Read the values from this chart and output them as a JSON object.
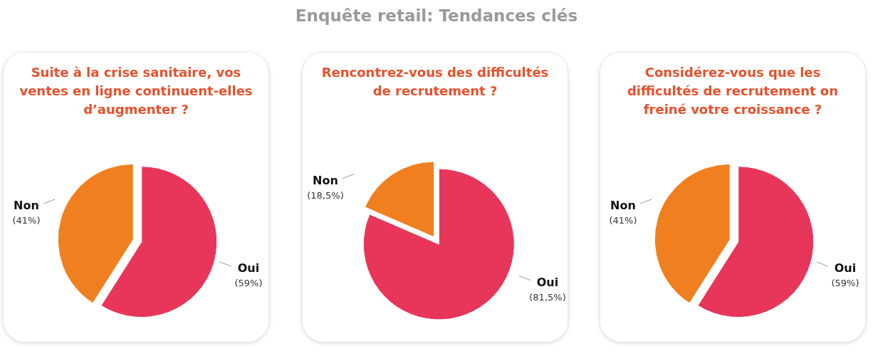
{
  "chart_data": [
    {
      "type": "other",
      "title": "Enquête retail: Tendances clés"
    },
    {
      "type": "pie",
      "title": "Suite à la crise sanitaire, vos ventes en ligne continuent-elles d’augmenter ?",
      "categories": [
        "Oui",
        "Non"
      ],
      "values": [
        59,
        41
      ],
      "colors": [
        "#e8355a",
        "#f0801f"
      ],
      "value_labels": [
        "(59%)",
        "(41%)"
      ]
    },
    {
      "type": "pie",
      "title": "Rencontrez-vous des difficultés de recrutement ?",
      "categories": [
        "Oui",
        "Non"
      ],
      "values": [
        81.5,
        18.5
      ],
      "colors": [
        "#e8355a",
        "#f0801f"
      ],
      "value_labels": [
        "(81,5%)",
        "(18,5%)"
      ]
    },
    {
      "type": "pie",
      "title": "Considérez-vous que les difficultés de recrutement on freiné votre croissance ?",
      "categories": [
        "Oui",
        "Non"
      ],
      "values": [
        59,
        41
      ],
      "colors": [
        "#e8355a",
        "#f0801f"
      ],
      "value_labels": [
        "(59%)",
        "(41%)"
      ]
    }
  ]
}
